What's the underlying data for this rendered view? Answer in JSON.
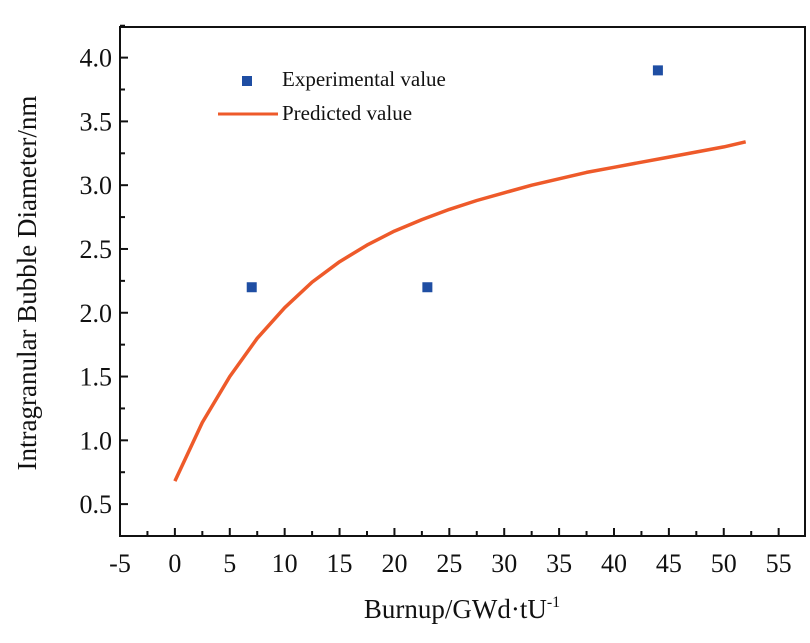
{
  "chart_data": {
    "type": "scatter+line",
    "title": "",
    "xlabel": "Burnup/GWd·tU",
    "xlabel_superscript": "-1",
    "ylabel": "Intragranular Bubble Diameter/nm",
    "xlim": [
      -5,
      57.4
    ],
    "ylim": [
      0.25,
      4.24
    ],
    "x_ticks": [
      "-5",
      "0",
      "5",
      "10",
      "15",
      "20",
      "25",
      "30",
      "35",
      "40",
      "45",
      "50",
      "55"
    ],
    "y_ticks": [
      "0.5",
      "1.0",
      "1.5",
      "2.0",
      "2.5",
      "3.0",
      "3.5",
      "4.0"
    ],
    "grid": false,
    "legend_position": "top-left",
    "series": [
      {
        "name": "Experimental value",
        "kind": "scatter",
        "color": "#1f4ea3",
        "x": [
          7.0,
          23.0,
          44.0
        ],
        "y": [
          2.2,
          2.2,
          3.9
        ]
      },
      {
        "name": "Predicted value",
        "kind": "line",
        "color": "#ee5a2a",
        "x": [
          0,
          2.5,
          5,
          7.5,
          10,
          12.5,
          15,
          17.5,
          20,
          22.5,
          25,
          27.5,
          30,
          32.5,
          35,
          37.5,
          40,
          42.5,
          45,
          47.5,
          50,
          52
        ],
        "y": [
          0.68,
          1.14,
          1.5,
          1.8,
          2.04,
          2.24,
          2.4,
          2.53,
          2.64,
          2.73,
          2.81,
          2.88,
          2.94,
          3.0,
          3.05,
          3.1,
          3.14,
          3.18,
          3.22,
          3.26,
          3.3,
          3.34
        ]
      }
    ]
  }
}
